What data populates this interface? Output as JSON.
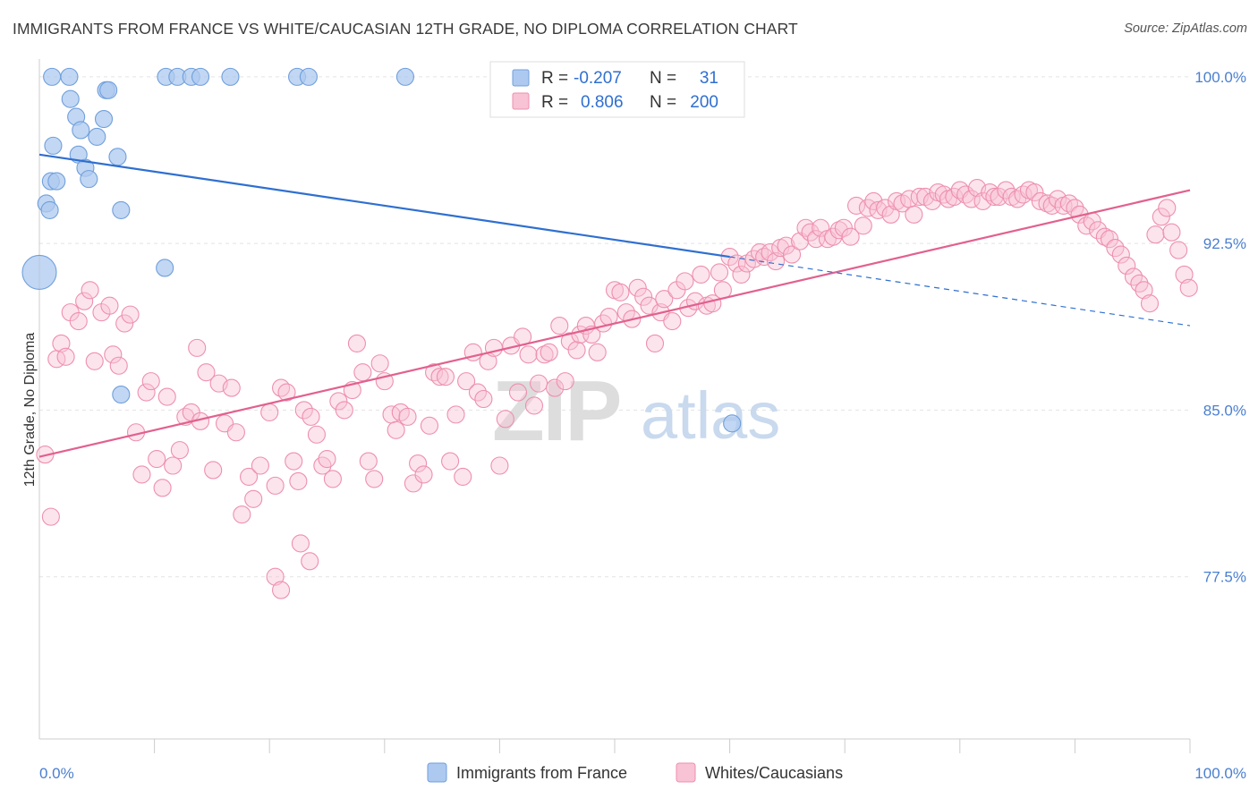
{
  "title": "IMMIGRANTS FROM FRANCE VS WHITE/CAUCASIAN 12TH GRADE, NO DIPLOMA CORRELATION CHART",
  "source": "Source: ZipAtlas.com",
  "watermark": {
    "zip": "ZIP",
    "atlas": "atlas"
  },
  "legend": {
    "r_label": "R =",
    "n_label": "N =",
    "rows": [
      {
        "name": "Immigrants from France",
        "r": "-0.207",
        "n": "31",
        "fill": "#aec9ef",
        "stroke": "#6f9fdc"
      },
      {
        "name": "Whites/Caucasians",
        "r": "0.806",
        "n": "200",
        "fill": "#f8c3d4",
        "stroke": "#ee8fae"
      }
    ]
  },
  "colors": {
    "blue": "#2f6fd0",
    "pink": "#e2608f",
    "blue_fill": "#aec9ef",
    "pink_fill": "#f8c3d4",
    "value_text": "#2f6fd0"
  },
  "chart_data": {
    "type": "scatter",
    "title": "IMMIGRANTS FROM FRANCE VS WHITE/CAUCASIAN 12TH GRADE, NO DIPLOMA CORRELATION CHART",
    "xlabel": "",
    "ylabel": "12th Grade, No Diploma",
    "xlim": [
      0,
      100
    ],
    "ylim": [
      70.2,
      100.8
    ],
    "x_tick_labels": [
      {
        "value": 0,
        "label": "0.0%"
      },
      {
        "value": 100,
        "label": "100.0%"
      }
    ],
    "y_ticks": [
      {
        "value": 100.0,
        "label": "100.0%"
      },
      {
        "value": 92.5,
        "label": "92.5%"
      },
      {
        "value": 85.0,
        "label": "85.0%"
      },
      {
        "value": 77.5,
        "label": "77.5%"
      }
    ],
    "x_minor_ticks": [
      10,
      20,
      30,
      40,
      50,
      60,
      70,
      80,
      90,
      100
    ],
    "series": [
      {
        "name": "Immigrants from France",
        "color": "blue",
        "trend": {
          "x": [
            0,
            60
          ],
          "y": [
            96.5,
            91.9
          ]
        },
        "trend_dashed": {
          "x": [
            60,
            100
          ],
          "y": [
            91.9,
            88.8
          ]
        },
        "points": [
          [
            0,
            91.2,
            "large"
          ],
          [
            1.1,
            100.0
          ],
          [
            1.2,
            96.9
          ],
          [
            1.0,
            95.3
          ],
          [
            0.6,
            94.3
          ],
          [
            1.5,
            95.3
          ],
          [
            0.9,
            94.0
          ],
          [
            2.6,
            100.0
          ],
          [
            2.7,
            99.0
          ],
          [
            3.2,
            98.2
          ],
          [
            3.6,
            97.6
          ],
          [
            3.4,
            96.5
          ],
          [
            4.0,
            95.9
          ],
          [
            4.3,
            95.4
          ],
          [
            5.0,
            97.3
          ],
          [
            5.6,
            98.1
          ],
          [
            5.8,
            99.4
          ],
          [
            6.0,
            99.4
          ],
          [
            6.8,
            96.4
          ],
          [
            7.1,
            94.0
          ],
          [
            10.9,
            91.4
          ],
          [
            11.0,
            100.0
          ],
          [
            12.0,
            100.0
          ],
          [
            13.2,
            100.0
          ],
          [
            14.0,
            100.0
          ],
          [
            16.6,
            100.0
          ],
          [
            22.4,
            100.0
          ],
          [
            23.4,
            100.0
          ],
          [
            31.8,
            100.0
          ],
          [
            7.1,
            85.7
          ],
          [
            60.2,
            84.4
          ]
        ]
      },
      {
        "name": "Whites/Caucasians",
        "color": "pink",
        "trend": {
          "x": [
            0,
            100
          ],
          "y": [
            82.9,
            94.9
          ]
        },
        "points": [
          [
            0.5,
            83.0
          ],
          [
            1.0,
            80.2
          ],
          [
            1.5,
            87.3
          ],
          [
            1.9,
            88.0
          ],
          [
            2.3,
            87.4
          ],
          [
            2.7,
            89.4
          ],
          [
            3.4,
            89.0
          ],
          [
            3.9,
            89.9
          ],
          [
            4.4,
            90.4
          ],
          [
            4.8,
            87.2
          ],
          [
            5.4,
            89.4
          ],
          [
            6.1,
            89.7
          ],
          [
            6.4,
            87.5
          ],
          [
            6.9,
            87.0
          ],
          [
            7.4,
            88.9
          ],
          [
            7.9,
            89.3
          ],
          [
            8.4,
            84.0
          ],
          [
            8.9,
            82.1
          ],
          [
            9.3,
            85.8
          ],
          [
            9.7,
            86.3
          ],
          [
            10.2,
            82.8
          ],
          [
            10.7,
            81.5
          ],
          [
            11.1,
            85.6
          ],
          [
            11.6,
            82.5
          ],
          [
            12.2,
            83.2
          ],
          [
            12.7,
            84.7
          ],
          [
            13.2,
            84.9
          ],
          [
            13.7,
            87.8
          ],
          [
            14.0,
            84.5
          ],
          [
            14.5,
            86.7
          ],
          [
            15.1,
            82.3
          ],
          [
            15.6,
            86.2
          ],
          [
            16.1,
            84.4
          ],
          [
            16.7,
            86.0
          ],
          [
            17.1,
            84.0
          ],
          [
            17.6,
            80.3
          ],
          [
            18.2,
            82.0
          ],
          [
            18.6,
            81.0
          ],
          [
            19.2,
            82.5
          ],
          [
            20.0,
            84.9
          ],
          [
            20.5,
            81.6
          ],
          [
            21.0,
            86.0
          ],
          [
            21.5,
            85.8
          ],
          [
            22.1,
            82.7
          ],
          [
            22.5,
            81.8
          ],
          [
            23.0,
            85.0
          ],
          [
            23.6,
            84.7
          ],
          [
            24.1,
            83.9
          ],
          [
            24.6,
            82.5
          ],
          [
            25.0,
            82.8
          ],
          [
            25.5,
            81.9
          ],
          [
            26.0,
            85.4
          ],
          [
            26.5,
            85.0
          ],
          [
            27.2,
            85.9
          ],
          [
            27.6,
            88.0
          ],
          [
            28.1,
            86.7
          ],
          [
            28.6,
            82.7
          ],
          [
            29.1,
            81.9
          ],
          [
            29.6,
            87.1
          ],
          [
            30.0,
            86.3
          ],
          [
            30.6,
            84.8
          ],
          [
            31.0,
            84.1
          ],
          [
            31.4,
            84.9
          ],
          [
            32.0,
            84.7
          ],
          [
            32.5,
            81.7
          ],
          [
            32.9,
            82.6
          ],
          [
            33.4,
            82.1
          ],
          [
            33.9,
            84.3
          ],
          [
            34.3,
            86.7
          ],
          [
            34.8,
            86.5
          ],
          [
            35.3,
            86.5
          ],
          [
            35.7,
            82.7
          ],
          [
            36.2,
            84.8
          ],
          [
            36.8,
            82.0
          ],
          [
            37.1,
            86.3
          ],
          [
            37.7,
            87.6
          ],
          [
            38.1,
            85.8
          ],
          [
            38.6,
            85.5
          ],
          [
            39.0,
            87.2
          ],
          [
            39.5,
            87.8
          ],
          [
            40.0,
            82.5
          ],
          [
            40.5,
            84.6
          ],
          [
            41.0,
            87.9
          ],
          [
            41.6,
            85.8
          ],
          [
            42.0,
            88.3
          ],
          [
            42.5,
            87.5
          ],
          [
            43.0,
            85.2
          ],
          [
            43.4,
            86.2
          ],
          [
            43.9,
            87.5
          ],
          [
            44.3,
            87.6
          ],
          [
            44.8,
            86.0
          ],
          [
            45.2,
            88.8
          ],
          [
            45.7,
            86.3
          ],
          [
            46.1,
            88.1
          ],
          [
            46.7,
            87.7
          ],
          [
            47.0,
            88.4
          ],
          [
            47.5,
            88.8
          ],
          [
            48.0,
            88.4
          ],
          [
            48.5,
            87.6
          ],
          [
            49.0,
            88.9
          ],
          [
            49.5,
            89.2
          ],
          [
            50.0,
            90.4
          ],
          [
            50.5,
            90.3
          ],
          [
            51.0,
            89.4
          ],
          [
            51.5,
            89.1
          ],
          [
            52.0,
            90.5
          ],
          [
            52.5,
            90.1
          ],
          [
            53.0,
            89.7
          ],
          [
            53.5,
            88.0
          ],
          [
            54.0,
            89.4
          ],
          [
            54.3,
            90.0
          ],
          [
            55.0,
            89.0
          ],
          [
            55.4,
            90.4
          ],
          [
            56.1,
            90.8
          ],
          [
            56.4,
            89.6
          ],
          [
            57.0,
            89.9
          ],
          [
            57.5,
            91.1
          ],
          [
            58.0,
            89.7
          ],
          [
            58.5,
            89.8
          ],
          [
            59.1,
            91.2
          ],
          [
            59.4,
            90.4
          ],
          [
            60.0,
            91.9
          ],
          [
            60.6,
            91.6
          ],
          [
            61.0,
            91.1
          ],
          [
            61.5,
            91.6
          ],
          [
            62.1,
            91.8
          ],
          [
            62.6,
            92.1
          ],
          [
            63.0,
            91.9
          ],
          [
            63.5,
            92.1
          ],
          [
            64.0,
            91.7
          ],
          [
            64.4,
            92.3
          ],
          [
            64.9,
            92.4
          ],
          [
            65.4,
            92.0
          ],
          [
            66.1,
            92.6
          ],
          [
            66.6,
            93.2
          ],
          [
            67.0,
            93.0
          ],
          [
            67.5,
            92.7
          ],
          [
            67.9,
            93.2
          ],
          [
            68.5,
            92.7
          ],
          [
            69.0,
            92.8
          ],
          [
            69.5,
            93.1
          ],
          [
            69.9,
            93.2
          ],
          [
            70.5,
            92.8
          ],
          [
            71.0,
            94.2
          ],
          [
            71.6,
            93.3
          ],
          [
            72.0,
            94.1
          ],
          [
            72.5,
            94.4
          ],
          [
            72.9,
            94.0
          ],
          [
            73.5,
            94.1
          ],
          [
            74.0,
            93.8
          ],
          [
            74.5,
            94.4
          ],
          [
            75.0,
            94.3
          ],
          [
            75.6,
            94.5
          ],
          [
            76.0,
            93.8
          ],
          [
            76.5,
            94.6
          ],
          [
            77.0,
            94.6
          ],
          [
            77.6,
            94.4
          ],
          [
            78.1,
            94.8
          ],
          [
            78.6,
            94.7
          ],
          [
            79.0,
            94.5
          ],
          [
            79.5,
            94.6
          ],
          [
            80.0,
            94.9
          ],
          [
            80.5,
            94.7
          ],
          [
            81.0,
            94.5
          ],
          [
            81.5,
            95.0
          ],
          [
            82.0,
            94.4
          ],
          [
            82.6,
            94.8
          ],
          [
            83.0,
            94.6
          ],
          [
            83.4,
            94.6
          ],
          [
            84.0,
            94.9
          ],
          [
            84.5,
            94.6
          ],
          [
            85.0,
            94.5
          ],
          [
            85.5,
            94.7
          ],
          [
            86.0,
            94.9
          ],
          [
            86.5,
            94.8
          ],
          [
            87.0,
            94.4
          ],
          [
            87.6,
            94.3
          ],
          [
            88.0,
            94.2
          ],
          [
            88.5,
            94.5
          ],
          [
            89.0,
            94.2
          ],
          [
            89.5,
            94.3
          ],
          [
            90.0,
            94.1
          ],
          [
            90.4,
            93.8
          ],
          [
            91.0,
            93.3
          ],
          [
            91.5,
            93.5
          ],
          [
            92.0,
            93.1
          ],
          [
            92.6,
            92.8
          ],
          [
            93.0,
            92.7
          ],
          [
            93.5,
            92.3
          ],
          [
            94.0,
            92.0
          ],
          [
            94.5,
            91.5
          ],
          [
            95.1,
            91.0
          ],
          [
            95.6,
            90.7
          ],
          [
            96.0,
            90.4
          ],
          [
            96.5,
            89.8
          ],
          [
            97.0,
            92.9
          ],
          [
            97.5,
            93.7
          ],
          [
            98.0,
            94.1
          ],
          [
            98.4,
            93.0
          ],
          [
            99.0,
            92.2
          ],
          [
            99.5,
            91.1
          ],
          [
            99.9,
            90.5
          ],
          [
            20.5,
            77.5
          ],
          [
            21.0,
            76.9
          ],
          [
            22.7,
            79.0
          ],
          [
            23.5,
            78.2
          ]
        ]
      }
    ]
  }
}
